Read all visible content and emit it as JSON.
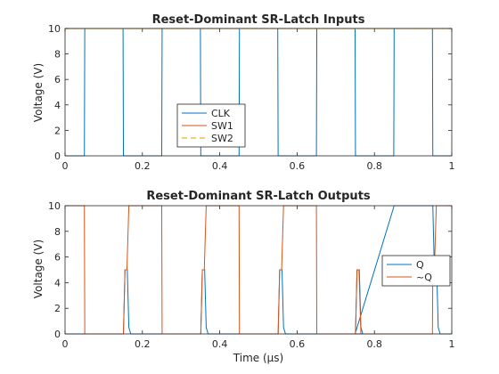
{
  "colors": {
    "blue": "#0072BD",
    "orange": "#D95319",
    "gold": "#EDB120",
    "axis": "#262626"
  },
  "chart_data": [
    {
      "type": "line",
      "title": "Reset-Dominant SR-Latch Inputs",
      "xlabel": "",
      "ylabel": "Voltage (V)",
      "xlim": [
        0,
        1
      ],
      "ylim": [
        0,
        10
      ],
      "xticks": [
        "0",
        "0.2",
        "0.4",
        "0.6",
        "0.8",
        "1"
      ],
      "yticks": [
        "0",
        "2",
        "4",
        "6",
        "8",
        "10"
      ],
      "legend": "center",
      "series": [
        {
          "name": "CLK",
          "color": "#0072BD",
          "dash": "solid",
          "x": [
            0,
            0.05,
            0.051,
            0.15,
            0.151,
            0.25,
            0.251,
            0.35,
            0.351,
            0.45,
            0.451,
            0.55,
            0.551,
            0.65,
            0.651,
            0.75,
            0.751,
            0.85,
            0.851,
            0.95,
            0.951,
            1.0
          ],
          "y": [
            0,
            0,
            10,
            10,
            0,
            0,
            10,
            10,
            0,
            0,
            10,
            10,
            0,
            0,
            10,
            10,
            0,
            0,
            10,
            10,
            0,
            0
          ]
        },
        {
          "name": "SW1",
          "color": "#D95319",
          "dash": "solid",
          "x": [
            0,
            1.0
          ],
          "y": [
            10,
            10
          ]
        },
        {
          "name": "SW2",
          "color": "#EDB120",
          "dash": "dashed",
          "x": [
            0,
            1.0
          ],
          "y": [
            10,
            10
          ]
        }
      ]
    },
    {
      "type": "line",
      "title": "Reset-Dominant SR-Latch Outputs",
      "xlabel": "Time (μs)",
      "ylabel": "Voltage (V)",
      "xlim": [
        0,
        1
      ],
      "ylim": [
        0,
        10
      ],
      "xticks": [
        "0",
        "0.2",
        "0.4",
        "0.6",
        "0.8",
        "1"
      ],
      "yticks": [
        "0",
        "2",
        "4",
        "6",
        "8",
        "10"
      ],
      "legend": "right",
      "series": [
        {
          "name": "Q",
          "color": "#0072BD",
          "dash": "solid",
          "x": [
            0,
            0.151,
            0.155,
            0.158,
            0.161,
            0.165,
            0.17,
            0.25,
            0.351,
            0.355,
            0.358,
            0.361,
            0.365,
            0.37,
            0.45,
            0.551,
            0.555,
            0.558,
            0.561,
            0.565,
            0.57,
            0.65,
            0.751,
            0.755,
            0.758,
            0.761,
            0.765,
            0.77,
            0.75,
            0.851,
            0.855,
            0.85,
            0.951,
            0.955,
            0.958,
            0.961,
            0.965,
            0.97,
            1.0
          ],
          "y": [
            0,
            0,
            5,
            5,
            5,
            0.5,
            0,
            0,
            0,
            5,
            5,
            5,
            0.5,
            0,
            0,
            0,
            5,
            5,
            5,
            0.5,
            0,
            0,
            0,
            5,
            5,
            5,
            0.5,
            0,
            0,
            10,
            10,
            10,
            10,
            5,
            5,
            5,
            0.5,
            0,
            0
          ]
        },
        {
          "name": "~Q",
          "color": "#D95319",
          "dash": "solid",
          "x": [
            0,
            0.05,
            0.051,
            0.15,
            0.151,
            0.155,
            0.16,
            0.165,
            0.17,
            0.25,
            0.251,
            0.35,
            0.351,
            0.355,
            0.36,
            0.365,
            0.37,
            0.45,
            0.451,
            0.55,
            0.551,
            0.555,
            0.56,
            0.565,
            0.57,
            0.65,
            0.651,
            0.75,
            0.751,
            0.755,
            0.76,
            0.765,
            0.77,
            0.85,
            0.851,
            0.95,
            0.951,
            0.955,
            0.96,
            0.965,
            0.97,
            1.0
          ],
          "y": [
            10,
            10,
            0,
            0,
            0,
            5,
            5,
            10,
            10,
            10,
            0,
            0,
            0,
            5,
            5,
            10,
            10,
            10,
            0,
            0,
            0,
            5,
            5,
            10,
            10,
            10,
            0,
            0,
            0,
            5,
            5,
            0,
            0,
            0,
            0,
            0,
            5,
            5,
            10,
            10,
            10,
            10
          ]
        }
      ]
    }
  ]
}
